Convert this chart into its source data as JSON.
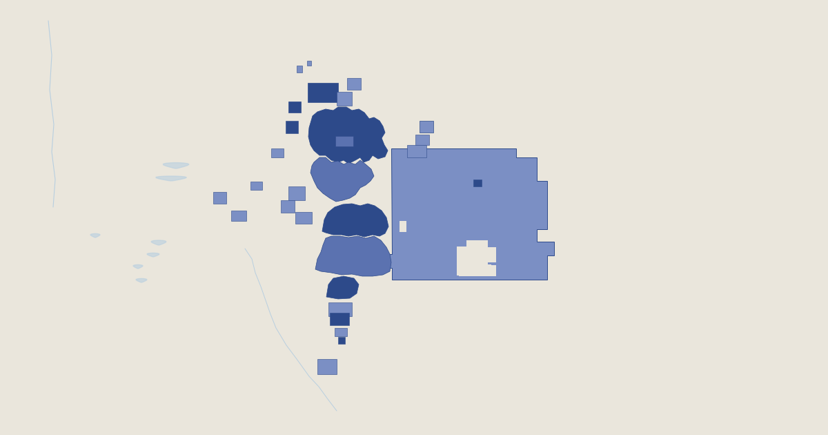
{
  "background_color": "#eae6dc",
  "district_fill_light": "#7b8fc4",
  "district_fill_medium": "#5b72b0",
  "district_fill_dark": "#2d4a8a",
  "district_edge": "#2d4a8a",
  "river_color": "#b8cfe0",
  "figsize": [
    12.0,
    6.3
  ],
  "dpi": 100
}
